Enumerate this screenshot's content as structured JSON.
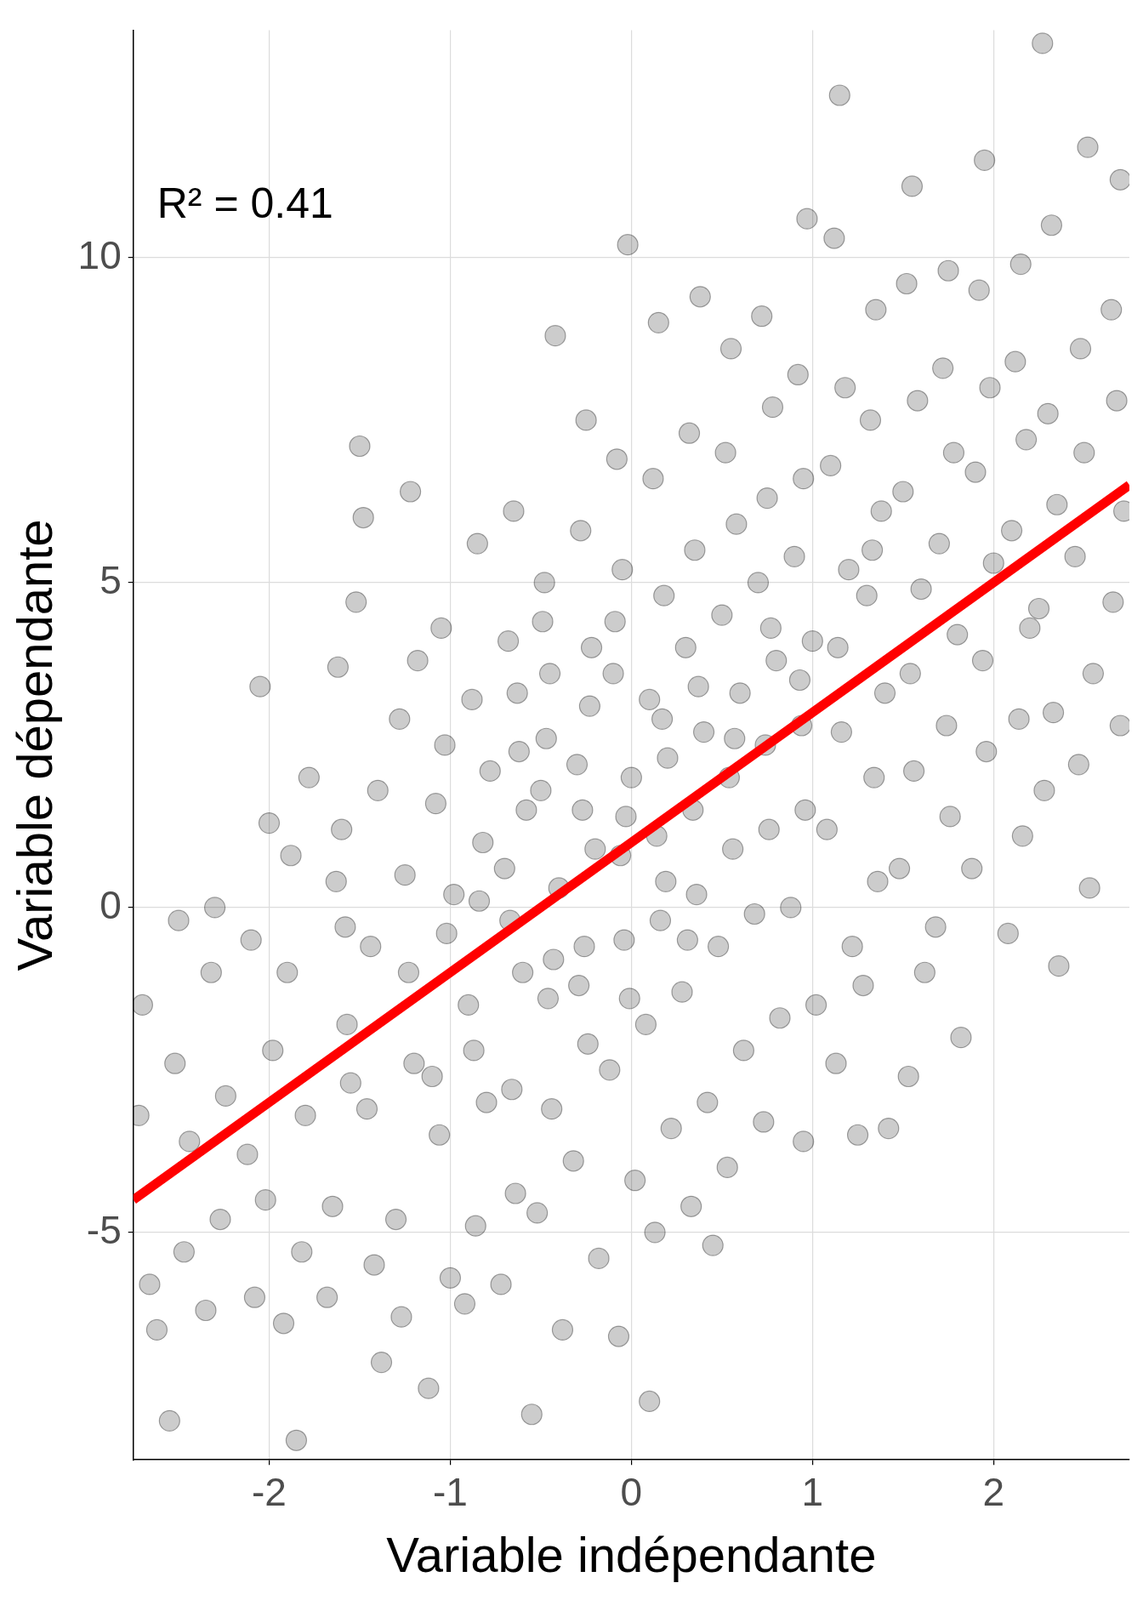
{
  "chart_data": {
    "type": "scatter",
    "x_label": "Variable indépendante",
    "y_label": "Variable dépendante",
    "annotations": [
      "R² = 0.41"
    ],
    "xlim": [
      -2.75,
      2.75
    ],
    "xticks": [
      -2,
      -1,
      0,
      1,
      2
    ],
    "ylim": [
      -8.5,
      13.5
    ],
    "yticks": [
      -5,
      0,
      5,
      10
    ],
    "grid": true,
    "series": [
      {
        "type": "line",
        "color": "#ff0000",
        "x": [
          -2.75,
          2.75
        ],
        "values": [
          -4.5,
          6.5
        ]
      },
      {
        "type": "scatter",
        "color": "#000000",
        "marker": "circle",
        "x": [
          -2.72,
          -2.66,
          -2.7,
          -2.62,
          -2.52,
          -2.47,
          -2.55,
          -2.44,
          -2.5,
          -2.32,
          -2.27,
          -2.35,
          -2.24,
          -2.3,
          -2.05,
          -2.1,
          -2.02,
          -2.08,
          -1.98,
          -2.12,
          -2.0,
          -1.85,
          -1.9,
          -1.82,
          -1.88,
          -1.8,
          -1.92,
          -1.78,
          -1.62,
          -1.58,
          -1.65,
          -1.55,
          -1.6,
          -1.68,
          -1.57,
          -1.63,
          -1.5,
          -1.48,
          -1.52,
          -1.42,
          -1.46,
          -1.4,
          -1.44,
          -1.38,
          -1.22,
          -1.28,
          -1.25,
          -1.2,
          -1.3,
          -1.23,
          -1.27,
          -1.18,
          -1.05,
          -1.08,
          -1.02,
          -1.1,
          -1.0,
          -1.06,
          -1.03,
          -1.12,
          -0.98,
          -0.85,
          -0.88,
          -0.82,
          -0.9,
          -0.8,
          -0.86,
          -0.84,
          -0.92,
          -0.78,
          -0.87,
          -0.65,
          -0.68,
          -0.62,
          -0.7,
          -0.6,
          -0.66,
          -0.64,
          -0.72,
          -0.58,
          -0.67,
          -0.63,
          -0.42,
          -0.48,
          -0.45,
          -0.5,
          -0.4,
          -0.46,
          -0.44,
          -0.52,
          -0.38,
          -0.47,
          -0.43,
          -0.49,
          -0.25,
          -0.28,
          -0.22,
          -0.3,
          -0.2,
          -0.26,
          -0.24,
          -0.32,
          -0.18,
          -0.55,
          -0.27,
          -0.23,
          -0.29,
          -0.02,
          -0.08,
          -0.05,
          -0.1,
          0.0,
          -0.06,
          -0.04,
          -0.12,
          0.02,
          -0.07,
          -0.03,
          -0.09,
          -0.01,
          0.15,
          0.12,
          0.18,
          0.1,
          0.2,
          0.14,
          0.16,
          0.08,
          0.22,
          0.13,
          0.1,
          0.17,
          0.19,
          0.38,
          0.32,
          0.35,
          0.3,
          0.4,
          0.34,
          0.36,
          0.28,
          0.42,
          0.33,
          0.37,
          0.31,
          0.55,
          0.52,
          0.58,
          0.5,
          0.6,
          0.54,
          0.56,
          0.48,
          0.62,
          0.53,
          0.45,
          0.57,
          0.72,
          0.78,
          0.75,
          0.7,
          0.8,
          0.74,
          0.76,
          0.68,
          0.82,
          0.73,
          0.77,
          0.97,
          0.92,
          0.95,
          0.9,
          1.0,
          0.94,
          0.96,
          0.88,
          1.02,
          0.95,
          0.93,
          1.15,
          1.12,
          1.18,
          1.1,
          1.2,
          1.14,
          1.16,
          1.08,
          1.22,
          1.13,
          1.25,
          1.35,
          1.32,
          1.38,
          1.3,
          1.4,
          1.34,
          1.36,
          1.28,
          1.42,
          1.33,
          1.55,
          1.52,
          1.58,
          1.5,
          1.6,
          1.54,
          1.56,
          1.48,
          1.62,
          1.53,
          1.75,
          1.72,
          1.78,
          1.7,
          1.8,
          1.74,
          1.76,
          1.68,
          1.82,
          1.95,
          1.92,
          1.98,
          1.9,
          2.0,
          1.94,
          1.96,
          1.88,
          2.15,
          2.12,
          2.18,
          2.1,
          2.2,
          2.14,
          2.16,
          2.08,
          2.27,
          2.32,
          2.3,
          2.35,
          2.25,
          2.33,
          2.28,
          2.36,
          2.52,
          2.48,
          2.5,
          2.45,
          2.55,
          2.47,
          2.53,
          2.7,
          2.65,
          2.68,
          2.72,
          2.66,
          2.7
        ],
        "values": [
          -3.2,
          -5.8,
          -1.5,
          -6.5,
          -2.4,
          -5.3,
          -7.9,
          -3.6,
          -0.2,
          -1.0,
          -4.8,
          -6.2,
          -2.9,
          0.0,
          3.4,
          -0.5,
          -4.5,
          -6.0,
          -2.2,
          -3.8,
          1.3,
          -8.2,
          -1.0,
          -5.3,
          0.8,
          -3.2,
          -6.4,
          2.0,
          3.7,
          -0.3,
          -4.6,
          -2.7,
          1.2,
          -6.0,
          -1.8,
          0.4,
          7.1,
          6.0,
          4.7,
          -5.5,
          -3.1,
          1.8,
          -0.6,
          -7.0,
          6.4,
          2.9,
          0.5,
          -2.4,
          -4.8,
          -1.0,
          -6.3,
          3.8,
          4.3,
          1.6,
          -0.4,
          -2.6,
          -5.7,
          -3.5,
          2.5,
          -7.4,
          0.2,
          5.6,
          3.2,
          1.0,
          -1.5,
          -3.0,
          -4.9,
          0.1,
          -6.1,
          2.1,
          -2.2,
          6.1,
          4.1,
          2.4,
          0.6,
          -1.0,
          -2.8,
          -4.4,
          -5.8,
          1.5,
          -0.2,
          3.3,
          8.8,
          5.0,
          3.6,
          1.8,
          0.3,
          -1.4,
          -3.1,
          -4.7,
          -6.5,
          2.6,
          -0.8,
          4.4,
          7.5,
          5.8,
          4.0,
          2.2,
          0.9,
          -0.6,
          -2.1,
          -3.9,
          -5.4,
          -7.8,
          1.5,
          3.1,
          -1.2,
          10.2,
          6.9,
          5.2,
          3.6,
          2.0,
          0.8,
          -0.5,
          -2.5,
          -4.2,
          -6.6,
          1.4,
          4.4,
          -1.4,
          9.0,
          6.6,
          4.8,
          3.2,
          2.3,
          1.1,
          -0.2,
          -1.8,
          -3.4,
          -5.0,
          -7.6,
          2.9,
          0.4,
          9.4,
          7.3,
          5.5,
          4.0,
          2.7,
          1.5,
          0.2,
          -1.3,
          -3.0,
          -4.6,
          3.4,
          -0.5,
          8.6,
          7.0,
          5.9,
          4.5,
          3.3,
          2.0,
          0.9,
          -0.6,
          -2.2,
          -4.0,
          -5.2,
          2.6,
          9.1,
          7.7,
          6.3,
          5.0,
          3.8,
          2.5,
          1.2,
          -0.1,
          -1.7,
          -3.3,
          4.3,
          10.6,
          8.2,
          6.6,
          5.4,
          4.1,
          2.8,
          1.5,
          0.0,
          -1.5,
          -3.6,
          3.5,
          12.5,
          10.3,
          8.0,
          6.8,
          5.2,
          4.0,
          2.7,
          1.2,
          -0.6,
          -2.4,
          -3.5,
          9.2,
          7.5,
          6.1,
          4.8,
          3.3,
          2.0,
          0.4,
          -1.2,
          -3.4,
          5.5,
          11.1,
          9.6,
          7.8,
          6.4,
          4.9,
          3.6,
          2.1,
          0.6,
          -1.0,
          -2.6,
          9.8,
          8.3,
          7.0,
          5.6,
          4.2,
          2.8,
          1.4,
          -0.3,
          -2.0,
          11.5,
          9.5,
          8.0,
          6.7,
          5.3,
          3.8,
          2.4,
          0.6,
          9.9,
          8.4,
          7.2,
          5.8,
          4.3,
          2.9,
          1.1,
          -0.4,
          13.3,
          10.5,
          7.6,
          6.2,
          4.6,
          3.0,
          1.8,
          -0.9,
          11.7,
          8.6,
          7.0,
          5.4,
          3.6,
          2.2,
          0.3,
          11.2,
          9.2,
          7.8,
          6.1,
          4.7,
          2.8
        ]
      }
    ]
  }
}
